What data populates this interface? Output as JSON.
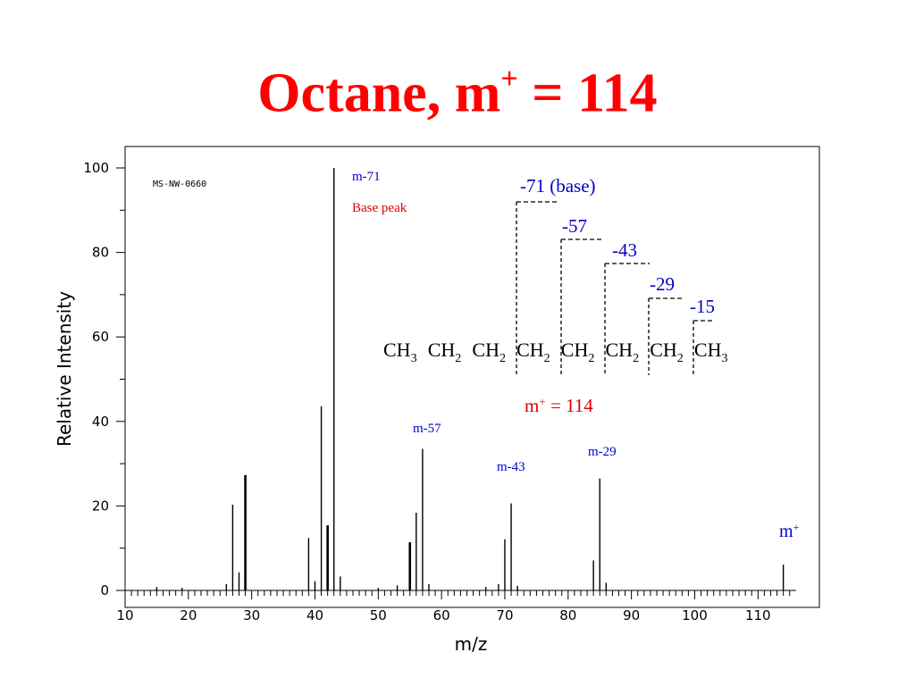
{
  "slide": {
    "title_main": "Octane, m",
    "title_sup": "+",
    "title_tail": " = 114"
  },
  "colors": {
    "title": "#ff0000",
    "blue": "#0000cc",
    "red": "#dd0000",
    "bar": "#000000"
  },
  "chart_data": {
    "type": "bar",
    "code": "MS-NW-0660",
    "xlabel": "m/z",
    "ylabel": "Relative Intensity",
    "xlim": [
      10,
      116
    ],
    "ylim": [
      0,
      100
    ],
    "x_ticks": [
      10,
      20,
      30,
      40,
      50,
      60,
      70,
      80,
      90,
      100,
      110
    ],
    "y_ticks": [
      0,
      20,
      40,
      60,
      80,
      100
    ],
    "grid": false,
    "peaks": [
      {
        "mz": 15,
        "i": 0.8
      },
      {
        "mz": 19,
        "i": 0.6
      },
      {
        "mz": 26,
        "i": 1.5
      },
      {
        "mz": 27,
        "i": 20.3
      },
      {
        "mz": 28,
        "i": 4.3
      },
      {
        "mz": 29,
        "i": 27.3
      },
      {
        "mz": 39,
        "i": 12.4
      },
      {
        "mz": 40,
        "i": 2.2
      },
      {
        "mz": 41,
        "i": 43.6
      },
      {
        "mz": 42,
        "i": 15.4
      },
      {
        "mz": 43,
        "i": 100
      },
      {
        "mz": 44,
        "i": 3.3
      },
      {
        "mz": 50,
        "i": 0.6
      },
      {
        "mz": 53,
        "i": 1.2
      },
      {
        "mz": 55,
        "i": 11.4
      },
      {
        "mz": 56,
        "i": 18.4
      },
      {
        "mz": 57,
        "i": 33.5
      },
      {
        "mz": 58,
        "i": 1.5
      },
      {
        "mz": 67,
        "i": 0.8
      },
      {
        "mz": 69,
        "i": 1.5
      },
      {
        "mz": 70,
        "i": 12.1
      },
      {
        "mz": 71,
        "i": 20.6
      },
      {
        "mz": 72,
        "i": 1.1
      },
      {
        "mz": 84,
        "i": 7.1
      },
      {
        "mz": 85,
        "i": 26.5
      },
      {
        "mz": 86,
        "i": 1.8
      },
      {
        "mz": 114,
        "i": 6.1
      }
    ],
    "peak_labels": [
      {
        "text": "m-71",
        "color": "blue"
      },
      {
        "text": "Base peak",
        "color": "red"
      },
      {
        "text": "m-57",
        "color": "blue"
      },
      {
        "text": "m-43",
        "color": "blue"
      },
      {
        "text": "m-29",
        "color": "blue"
      },
      {
        "text": "m",
        "sup": "+",
        "color": "blue"
      }
    ]
  },
  "structure": {
    "groups": [
      {
        "base": "CH",
        "sub": "3"
      },
      {
        "base": "CH",
        "sub": "2"
      },
      {
        "base": "CH",
        "sub": "2"
      },
      {
        "base": "CH",
        "sub": "2"
      },
      {
        "base": "CH",
        "sub": "2"
      },
      {
        "base": "CH",
        "sub": "2"
      },
      {
        "base": "CH",
        "sub": "2"
      },
      {
        "base": "CH",
        "sub": "3"
      }
    ],
    "cleavages": [
      {
        "text": "-71 (base)"
      },
      {
        "text": "-57"
      },
      {
        "text": "-43"
      },
      {
        "text": "-29"
      },
      {
        "text": "-15"
      }
    ],
    "molecular_ion": {
      "text_main": "m",
      "text_sup": "+",
      "text_tail": " = 114"
    }
  }
}
